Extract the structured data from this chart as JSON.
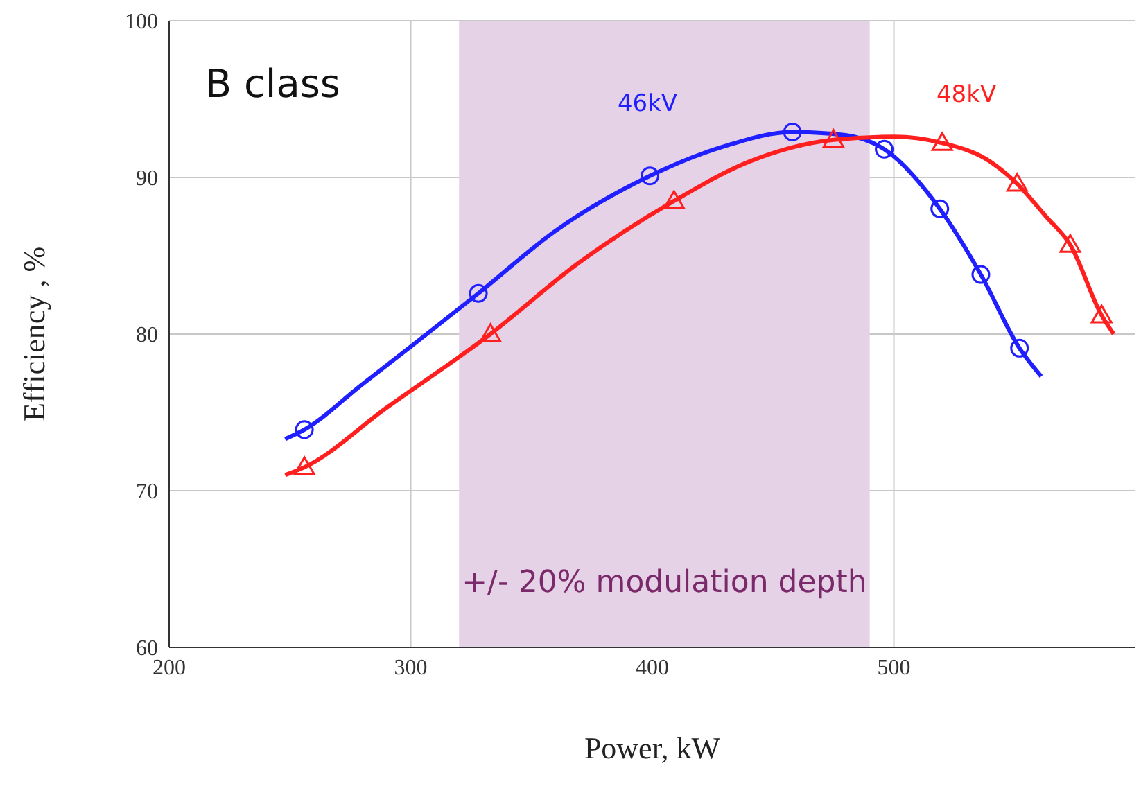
{
  "chart_data": {
    "type": "line",
    "xlabel": "Power, kW",
    "ylabel": "Efficiency , %",
    "annotations": [
      "B class"
    ],
    "xlim": [
      200,
      600
    ],
    "ylim": [
      60,
      100
    ],
    "xticks": [
      200,
      300,
      400,
      500
    ],
    "yticks": [
      60,
      70,
      80,
      90,
      100
    ],
    "grid": true,
    "legend": false,
    "bands": [
      {
        "axis": "x",
        "from": 320,
        "to": 490,
        "label": "+/- 20% modulation depth",
        "color": "#e6d2e6"
      }
    ],
    "series": [
      {
        "name": "46kV",
        "color": "#1f1fff",
        "marker": "none",
        "x": [
          248,
          256,
          280,
          300,
          328,
          360,
          399,
          430,
          458,
          480,
          496,
          519,
          536,
          552,
          561
        ],
        "values": [
          73.3,
          73.9,
          76.8,
          79.2,
          82.6,
          86.6,
          90.1,
          92.0,
          92.9,
          92.7,
          91.8,
          88.0,
          83.8,
          79.1,
          77.3
        ]
      },
      {
        "name": "48kV",
        "color": "#ff1f1f",
        "marker": "none",
        "x": [
          248,
          256,
          290,
          333,
          370,
          409,
          440,
          475,
          500,
          520,
          540,
          551,
          563,
          573,
          586,
          591
        ],
        "values": [
          71.0,
          71.5,
          75.3,
          80.0,
          84.6,
          88.5,
          91.0,
          92.4,
          92.6,
          92.2,
          91.0,
          89.6,
          87.5,
          85.7,
          81.2,
          80.0
        ]
      },
      {
        "type": "scatter",
        "color": "#1f1fff",
        "marker": "circle",
        "x": [
          256,
          328,
          399,
          458,
          496,
          519,
          536,
          552
        ],
        "values": [
          73.9,
          82.6,
          90.1,
          92.9,
          91.8,
          88.0,
          83.8,
          79.1
        ]
      },
      {
        "type": "scatter",
        "color": "#ff1f1f",
        "marker": "triangle",
        "x": [
          256,
          333,
          409,
          475,
          520,
          551,
          573,
          586
        ],
        "values": [
          71.5,
          80.0,
          88.5,
          92.4,
          92.2,
          89.6,
          85.7,
          81.2
        ]
      }
    ]
  }
}
